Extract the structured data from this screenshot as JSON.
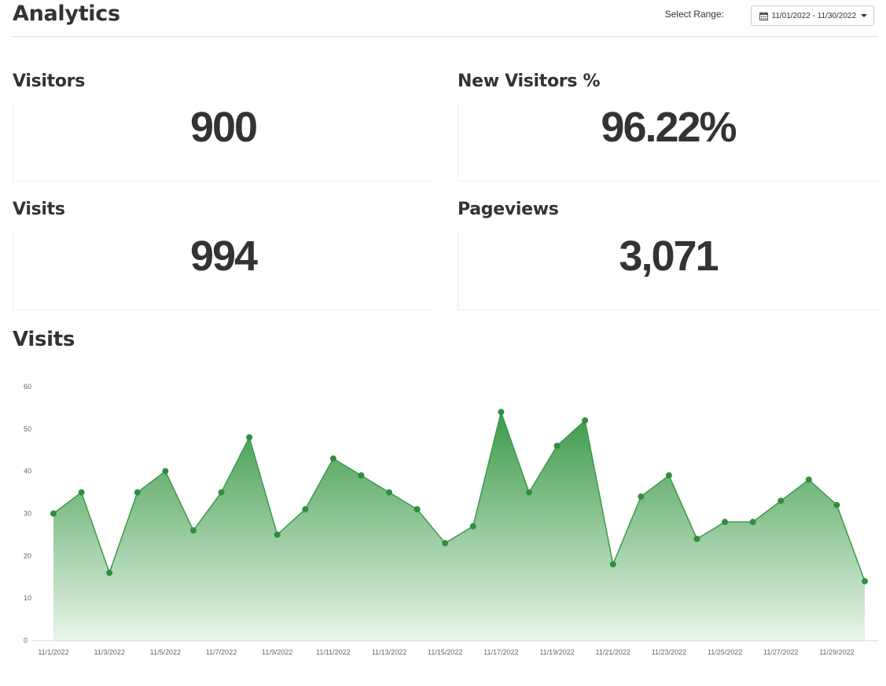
{
  "header": {
    "title": "Analytics",
    "range_label": "Select Range:",
    "range_value": "11/01/2022 - 11/30/2022"
  },
  "stats": {
    "visitors": {
      "label": "Visitors",
      "value": "900"
    },
    "new_visitors": {
      "label": "New Visitors %",
      "value": "96.22%"
    },
    "visits": {
      "label": "Visits",
      "value": "994"
    },
    "pageviews": {
      "label": "Pageviews",
      "value": "3,071"
    }
  },
  "chart_title": "Visits",
  "colors": {
    "line": "#3d9a4a",
    "point": "#2f8f3d",
    "fill_top": "#3d9a4a",
    "fill_bottom": "#e8f5e9"
  },
  "icons": {
    "calendar": "calendar-icon",
    "caret": "caret-down-icon"
  },
  "chart_data": {
    "type": "area",
    "title": "Visits",
    "x": [
      "11/1/2022",
      "11/2/2022",
      "11/3/2022",
      "11/4/2022",
      "11/5/2022",
      "11/6/2022",
      "11/7/2022",
      "11/8/2022",
      "11/9/2022",
      "11/10/2022",
      "11/11/2022",
      "11/12/2022",
      "11/13/2022",
      "11/14/2022",
      "11/15/2022",
      "11/16/2022",
      "11/17/2022",
      "11/18/2022",
      "11/19/2022",
      "11/20/2022",
      "11/21/2022",
      "11/22/2022",
      "11/23/2022",
      "11/24/2022",
      "11/25/2022",
      "11/26/2022",
      "11/27/2022",
      "11/28/2022",
      "11/29/2022",
      "11/30/2022"
    ],
    "values": [
      30,
      35,
      16,
      35,
      40,
      26,
      35,
      48,
      25,
      31,
      43,
      39,
      35,
      31,
      23,
      27,
      54,
      35,
      46,
      52,
      18,
      34,
      39,
      24,
      28,
      28,
      33,
      38,
      32,
      14
    ],
    "x_tick_labels": [
      "11/1/2022",
      "11/3/2022",
      "11/5/2022",
      "11/7/2022",
      "11/9/2022",
      "11/11/2022",
      "11/13/2022",
      "11/15/2022",
      "11/17/2022",
      "11/19/2022",
      "11/21/2022",
      "11/23/2022",
      "11/25/2022",
      "11/27/2022",
      "11/29/2022"
    ],
    "y_ticks": [
      0,
      10,
      20,
      30,
      40,
      50,
      60
    ],
    "ylim": [
      0,
      60
    ],
    "grid": false,
    "legend": "none"
  }
}
